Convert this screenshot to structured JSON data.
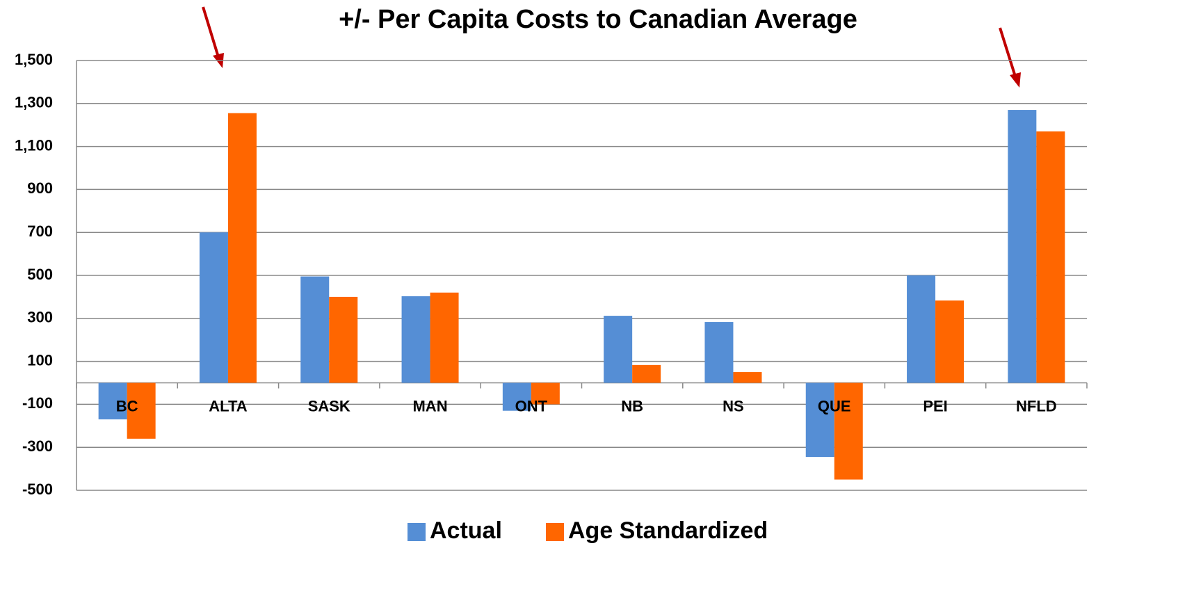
{
  "chart_data": {
    "type": "bar",
    "title": "+/- Per Capita Costs to Canadian Average",
    "categories": [
      "BC",
      "ALTA",
      "SASK",
      "MAN",
      "ONT",
      "NB",
      "NS",
      "QUE",
      "PEI",
      "NFLD"
    ],
    "series": [
      {
        "name": "Actual",
        "color": "#558ed5",
        "values": [
          -170,
          700,
          495,
          403,
          -130,
          312,
          283,
          -345,
          500,
          1270
        ]
      },
      {
        "name": "Age Standardized",
        "color": "#ff6600",
        "values": [
          -260,
          1255,
          400,
          420,
          -100,
          83,
          50,
          -450,
          383,
          1170
        ]
      }
    ],
    "ylim": [
      -500,
      1500
    ],
    "yticks": [
      {
        "value": 1500,
        "label": "1,500"
      },
      {
        "value": 1300,
        "label": "1,300"
      },
      {
        "value": 1100,
        "label": "1,100"
      },
      900,
      700,
      500,
      300,
      100,
      -100,
      -300,
      -500
    ],
    "grid": true,
    "legend": "bottom"
  }
}
